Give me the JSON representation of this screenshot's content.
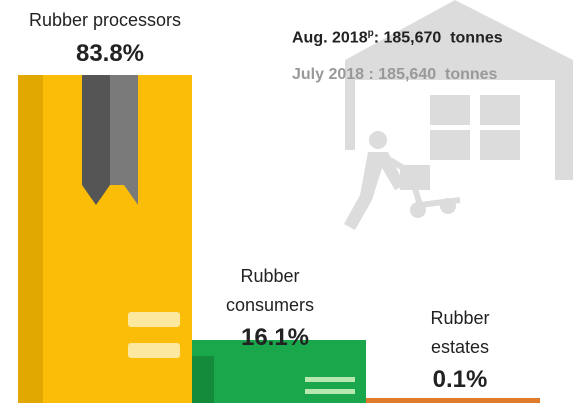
{
  "chart_data": {
    "type": "bar",
    "categories": [
      "Rubber processors",
      "Rubber consumers",
      "Rubber estates"
    ],
    "values": [
      83.8,
      16.1,
      0.1
    ],
    "value_labels": [
      "83.8%",
      "16.1%",
      "0.1%"
    ],
    "colors": [
      "#fbbd08",
      "#1aa64a",
      "#e07b2a"
    ],
    "annotations": [
      {
        "label": "Aug. 2018",
        "superscript": "p",
        "value": ": 185,670  tonnes"
      },
      {
        "label": "July 2018 : 185,640  tonnes"
      }
    ]
  }
}
